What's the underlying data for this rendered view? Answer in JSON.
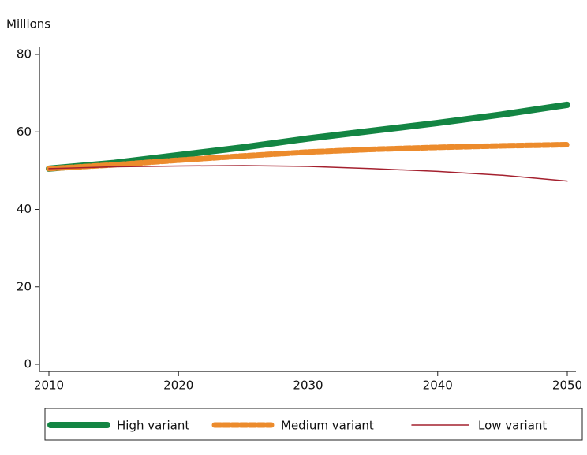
{
  "chart_data": {
    "type": "line",
    "y_label": "Millions",
    "x": [
      2010,
      2015,
      2020,
      2025,
      2030,
      2035,
      2040,
      2045,
      2050
    ],
    "series": [
      {
        "name": "High variant",
        "color": "#138543",
        "values": [
          50.5,
          52,
          54,
          56,
          58.3,
          60.3,
          62.3,
          64.5,
          67
        ]
      },
      {
        "name": "Medium variant",
        "color": "#ec8b2c",
        "values": [
          50.5,
          51.5,
          52.7,
          53.8,
          54.8,
          55.5,
          56,
          56.4,
          56.7
        ]
      },
      {
        "name": "Low variant",
        "color": "#a4202e",
        "values": [
          50.5,
          51,
          51.2,
          51.3,
          51.1,
          50.5,
          49.8,
          48.8,
          47.3
        ]
      }
    ],
    "xlim": [
      2010,
      2050
    ],
    "xticks": [
      2010,
      2020,
      2030,
      2040,
      2050
    ],
    "ylim": [
      0,
      80
    ],
    "yticks": [
      0,
      20,
      40,
      60,
      80
    ],
    "grid": false,
    "legend": "bottom"
  }
}
